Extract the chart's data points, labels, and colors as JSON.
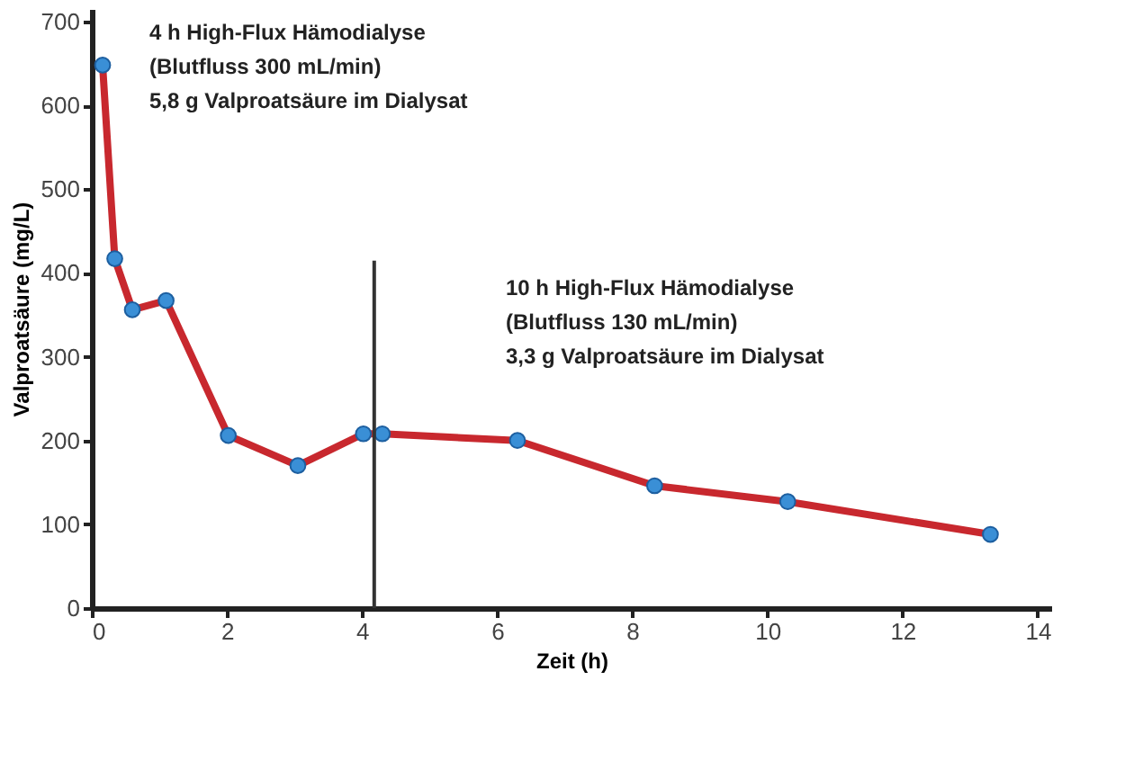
{
  "chart_data": {
    "type": "line",
    "xlabel": "Zeit (h)",
    "ylabel": "Valproatsäure (mg/L)",
    "x": [
      0.16,
      0.34,
      0.6,
      1.1,
      2.02,
      3.05,
      4.02,
      4.3,
      6.3,
      8.33,
      10.3,
      13.3
    ],
    "series": [
      {
        "color": "#c8282e",
        "values": [
          648,
          417,
          356,
          367,
          206,
          170,
          208,
          208,
          200,
          146,
          127,
          88
        ]
      }
    ],
    "marker": "circle",
    "grid": false,
    "xlim": [
      0,
      14.2
    ],
    "xticks": [
      0,
      2,
      4,
      6,
      8,
      10,
      12,
      14
    ],
    "ylim": [
      0,
      715
    ],
    "yticks": [
      0,
      100,
      200,
      300,
      400,
      500,
      600,
      700
    ],
    "ref_lines": [
      {
        "axis": "x",
        "value": 4.18,
        "color": "#333333"
      }
    ],
    "annotations": [
      "4 h High-Flux Hämodialyse\n(Blutfluss 300 mL/min)\n5,8 g Valproatsäure im Dialysat",
      "10 h High-Flux Hämodialyse\n(Blutfluss 130 mL/min)\n3,3 g Valproatsäure im Dialysat"
    ]
  }
}
